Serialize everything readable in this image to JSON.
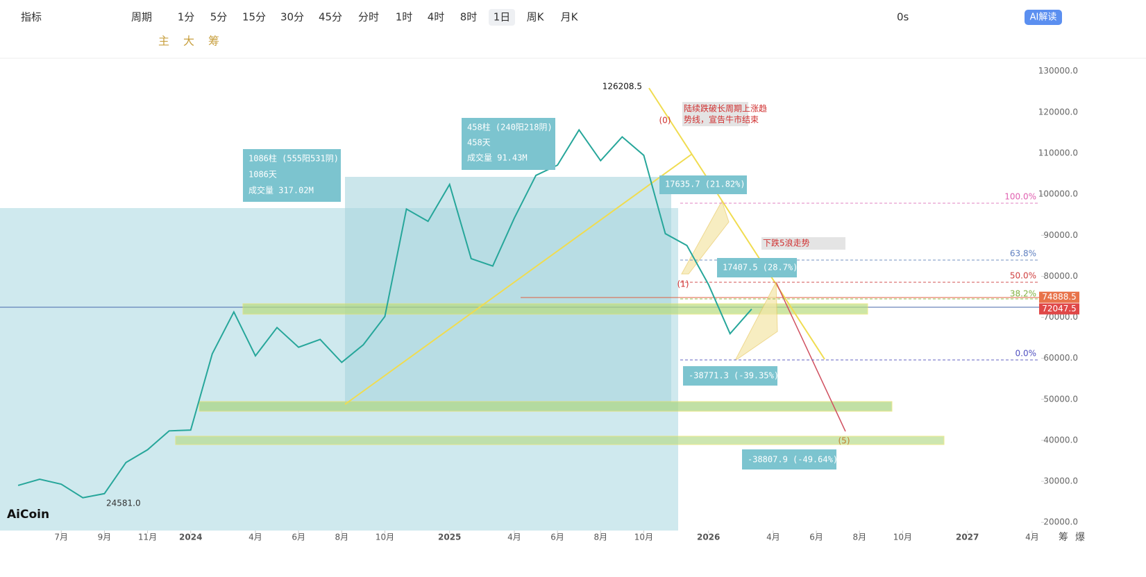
{
  "toolbar": {
    "indicator": "指标",
    "period": "周期",
    "intervals": [
      "1分",
      "5分",
      "15分",
      "30分",
      "45分",
      "分时",
      "1时",
      "4时",
      "8时",
      "1日",
      "周K",
      "月K"
    ],
    "timer": "0s",
    "ai": "AI解读"
  },
  "drawing_tools": [
    "主",
    "大",
    "筹"
  ],
  "logo": "AiCoin",
  "corner": [
    "筹",
    "爆"
  ],
  "chart_data": {
    "type": "line",
    "x": [
      "2023-05",
      "2023-06",
      "2023-07",
      "2023-08",
      "2023-09",
      "2023-10",
      "2023-11",
      "2023-12",
      "2024-01",
      "2024-02",
      "2024-03",
      "2024-04",
      "2024-05",
      "2024-06",
      "2024-07",
      "2024-08",
      "2024-09",
      "2024-10",
      "2024-11",
      "2024-12",
      "2025-01",
      "2025-02",
      "2025-03",
      "2025-04",
      "2025-05",
      "2025-06",
      "2025-07",
      "2025-08",
      "2025-09",
      "2025-10",
      "2025-11",
      "2025-12",
      "2026-01",
      "2026-02",
      "2026-03"
    ],
    "series": [
      {
        "name": "BTC",
        "color": "#26a69a",
        "values": [
          29000,
          30500,
          29300,
          26000,
          27000,
          34600,
          37700,
          42300,
          42500,
          61100,
          71300,
          60600,
          67500,
          62700,
          64600,
          59000,
          63300,
          70200,
          96400,
          93400,
          102400,
          84300,
          82500,
          94200,
          104600,
          107100,
          115700,
          108200,
          114000,
          109500,
          90400,
          87500,
          78000,
          66000,
          72000
        ]
      }
    ],
    "xlim": [
      "2023-04",
      "2027-05"
    ],
    "xticks": [
      {
        "value": "2023-07",
        "label": "7月"
      },
      {
        "value": "2023-09",
        "label": "9月"
      },
      {
        "value": "2023-11",
        "label": "11月"
      },
      {
        "value": "2024-01",
        "label": "2024"
      },
      {
        "value": "2024-04",
        "label": "4月"
      },
      {
        "value": "2024-06",
        "label": "6月"
      },
      {
        "value": "2024-08",
        "label": "8月"
      },
      {
        "value": "2024-10",
        "label": "10月"
      },
      {
        "value": "2025-01",
        "label": "2025"
      },
      {
        "value": "2025-04",
        "label": "4月"
      },
      {
        "value": "2025-06",
        "label": "6月"
      },
      {
        "value": "2025-08",
        "label": "8月"
      },
      {
        "value": "2025-10",
        "label": "10月"
      },
      {
        "value": "2026-01",
        "label": "2026"
      },
      {
        "value": "2026-04",
        "label": "4月"
      },
      {
        "value": "2026-06",
        "label": "6月"
      },
      {
        "value": "2026-08",
        "label": "8月"
      },
      {
        "value": "2026-10",
        "label": "10月"
      },
      {
        "value": "2027-01",
        "label": "2027"
      },
      {
        "value": "2027-04",
        "label": "4月"
      }
    ],
    "ylim": [
      18000,
      133000
    ],
    "yticks": [
      {
        "value": 20000,
        "label": "20000.0"
      },
      {
        "value": 30000,
        "label": "30000.0"
      },
      {
        "value": 40000,
        "label": "40000.0"
      },
      {
        "value": 50000,
        "label": "50000.0"
      },
      {
        "value": 60000,
        "label": "60000.0"
      },
      {
        "value": 70000,
        "label": "70000.0"
      },
      {
        "value": 80000,
        "label": "80000.0"
      },
      {
        "value": 90000,
        "label": "90000.0"
      },
      {
        "value": 100000,
        "label": "100000.0"
      },
      {
        "value": 110000,
        "label": "110000.0"
      },
      {
        "value": 120000,
        "label": "120000.0"
      },
      {
        "value": 130000,
        "label": "130000.0"
      }
    ],
    "high": {
      "value": 126208.5,
      "label": "126208.5"
    },
    "low": {
      "value": 24581,
      "label": "24581.0"
    },
    "price_tags": [
      74888.5,
      72047.5
    ],
    "measures": [
      [
        "1086柱 (555阳531阴)",
        "1086天",
        "成交量 317.02M"
      ],
      [
        "458柱 (240阳218阴)",
        "458天",
        "成交量 91.43M"
      ]
    ],
    "changes": [
      "17635.7 (21.82%)",
      "17407.5 (28.7%)",
      "-38771.3 (-39.35%)",
      "-38807.9 (-49.64%)"
    ],
    "notes": [
      "陆续跌破长周期上涨趋",
      "势线，宣告牛市结束",
      "下跌5浪走势"
    ],
    "fib": [
      "100.0%",
      "63.8%",
      "50.0%",
      "38.2%",
      "0.0%"
    ],
    "waves": [
      "(0)",
      "(1)",
      "(5)"
    ]
  }
}
